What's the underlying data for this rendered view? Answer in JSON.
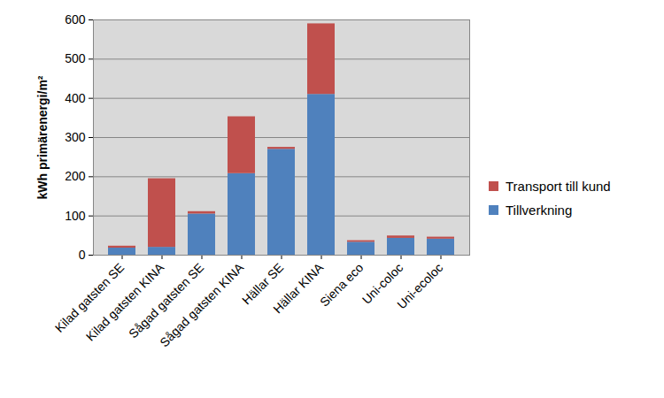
{
  "chart_data": {
    "type": "bar",
    "stacked": true,
    "ylabel": "kWh primärenergi/m²",
    "categories": [
      "Kilad gatsten SE",
      "Kilad gatsten KINA",
      "Sågad gatsten SE",
      "Sågad gatsten KINA",
      "Hällar SE",
      "Hällar KINA",
      "Siena eco",
      "Uni-coloc",
      "Uni-ecoloc"
    ],
    "series": [
      {
        "name": "Tillverkning",
        "color": "#4f81bd",
        "values": [
          18,
          20,
          105,
          208,
          270,
          410,
          33,
          43,
          41
        ]
      },
      {
        "name": "Transport till kund",
        "color": "#c0504d",
        "values": [
          5,
          175,
          6,
          145,
          5,
          180,
          4,
          6,
          5
        ]
      }
    ],
    "ylim": [
      0,
      600
    ],
    "yticks": [
      0,
      100,
      200,
      300,
      400,
      500,
      600
    ],
    "grid": true,
    "legend": "right"
  }
}
